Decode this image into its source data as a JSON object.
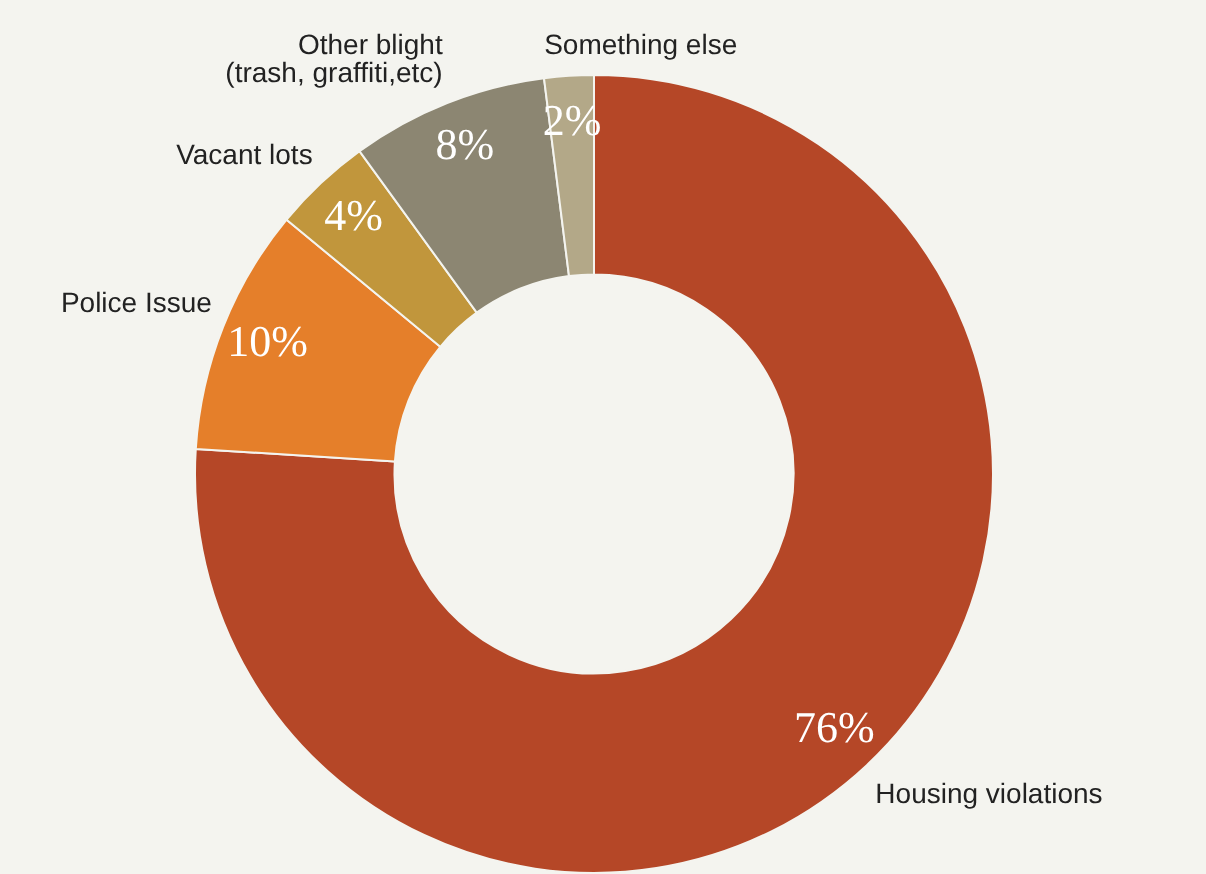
{
  "chart_data": {
    "type": "donut",
    "categories": [
      "Housing violations",
      "Police Issue",
      "Vacant lots",
      "Other blight\n(trash, graffiti,etc)",
      "Something else"
    ],
    "values": [
      76,
      10,
      4,
      8,
      2
    ],
    "colors": [
      "#b54727",
      "#e57f2a",
      "#c1963c",
      "#8c8672",
      "#b3a888"
    ],
    "value_labels": [
      "76%",
      "10%",
      "4%",
      "8%",
      "2%"
    ],
    "legend": false
  }
}
